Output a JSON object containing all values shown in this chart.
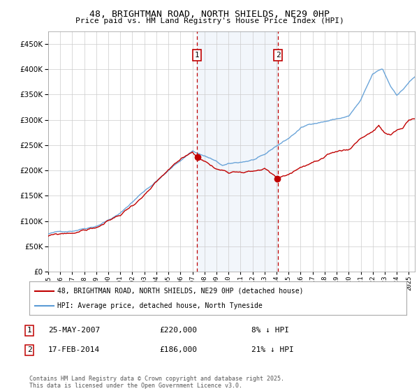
{
  "title": "48, BRIGHTMAN ROAD, NORTH SHIELDS, NE29 0HP",
  "subtitle": "Price paid vs. HM Land Registry's House Price Index (HPI)",
  "ytick_values": [
    0,
    50000,
    100000,
    150000,
    200000,
    250000,
    300000,
    350000,
    400000,
    450000
  ],
  "ylim": [
    0,
    475000
  ],
  "xlim_start": 1995.0,
  "xlim_end": 2025.5,
  "hpi_color": "#5b9bd5",
  "price_color": "#c00000",
  "marker1_date": 2007.39,
  "marker1_price": 220000,
  "marker1_label": "25-MAY-2007",
  "marker1_pct": "8% ↓ HPI",
  "marker2_date": 2014.12,
  "marker2_price": 186000,
  "marker2_label": "17-FEB-2014",
  "marker2_pct": "21% ↓ HPI",
  "legend_line1": "48, BRIGHTMAN ROAD, NORTH SHIELDS, NE29 0HP (detached house)",
  "legend_line2": "HPI: Average price, detached house, North Tyneside",
  "footnote": "Contains HM Land Registry data © Crown copyright and database right 2025.\nThis data is licensed under the Open Government Licence v3.0.",
  "background_color": "#ffffff",
  "grid_color": "#cccccc"
}
